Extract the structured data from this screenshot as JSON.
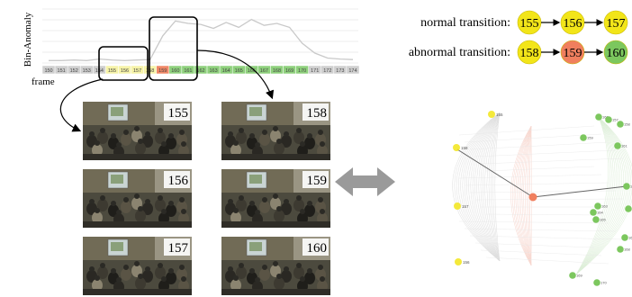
{
  "chart": {
    "ylabel": "Bin-Anomaly",
    "xlabel": "frame",
    "frames": [
      "150",
      "151",
      "152",
      "153",
      "154",
      "155",
      "156",
      "157",
      "158",
      "159",
      "160",
      "161",
      "162",
      "163",
      "164",
      "165",
      "166",
      "167",
      "168",
      "169",
      "170",
      "171",
      "172",
      "173",
      "174"
    ],
    "frame_colors": [
      "#cfcfcf",
      "#cfcfcf",
      "#cfcfcf",
      "#cfcfcf",
      "#cfcfcf",
      "#f6f3a8",
      "#f6f3a8",
      "#f6f3a8",
      "#f6f3a8",
      "#ef8766",
      "#8ed07c",
      "#8ed07c",
      "#8ed07c",
      "#8ed07c",
      "#8ed07c",
      "#8ed07c",
      "#8ed07c",
      "#8ed07c",
      "#8ed07c",
      "#8ed07c",
      "#8ed07c",
      "#cfcfcf",
      "#cfcfcf",
      "#cfcfcf",
      "#cfcfcf"
    ],
    "anomaly": [
      0.05,
      0.05,
      0.06,
      0.05,
      0.08,
      0.06,
      0.05,
      0.06,
      0.07,
      0.55,
      0.85,
      0.8,
      0.78,
      0.7,
      0.82,
      0.72,
      0.88,
      0.76,
      0.8,
      0.72,
      0.4,
      0.2,
      0.1,
      0.08,
      0.07
    ]
  },
  "legend": {
    "normal_label": "normal transition:",
    "normal_nodes": [
      {
        "label": "155",
        "color": "#f2e519"
      },
      {
        "label": "156",
        "color": "#f2e519"
      },
      {
        "label": "157",
        "color": "#f2e519"
      }
    ],
    "abnormal_label": "abnormal transition:",
    "abnormal_nodes": [
      {
        "label": "158",
        "color": "#f2e519"
      },
      {
        "label": "159",
        "color": "#f07f5e"
      },
      {
        "label": "160",
        "color": "#7cc75e"
      }
    ]
  },
  "frames_left": [
    "155",
    "156",
    "157"
  ],
  "frames_right": [
    "158",
    "159",
    "160"
  ],
  "network": {
    "yellow_labels": [
      "155",
      "158",
      "157",
      "156"
    ],
    "green_labels": [
      "160",
      "157",
      "158",
      "159",
      "161",
      "162",
      "163",
      "164",
      "165",
      "166",
      "167",
      "168",
      "169",
      "170"
    ]
  },
  "colors": {
    "yellow": "#f2e519",
    "orange": "#f07f5e",
    "green": "#7cc75e",
    "gray_arrow": "#9a9a9a"
  }
}
